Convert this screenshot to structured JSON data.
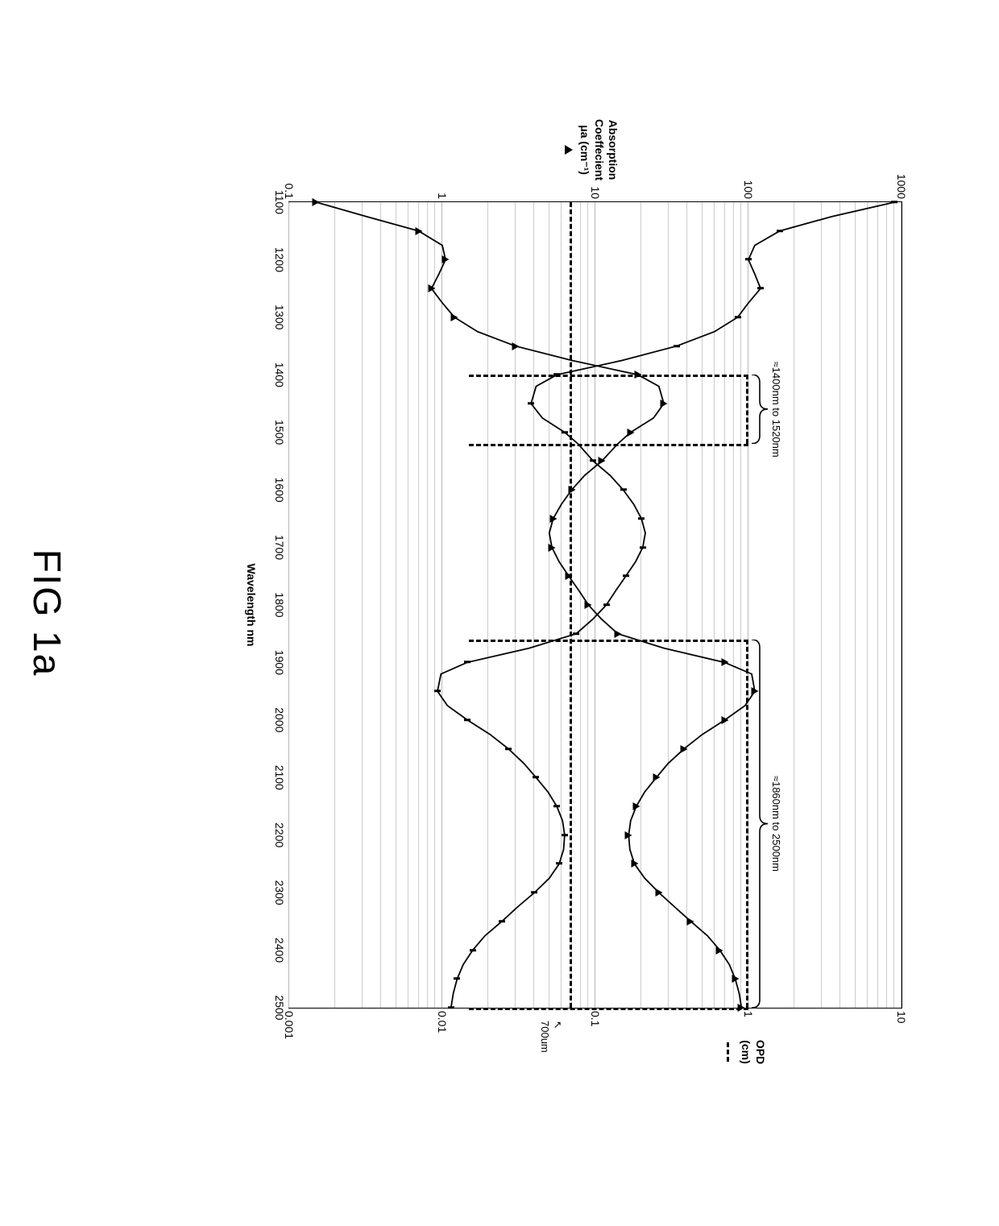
{
  "figure": {
    "title": "FIG 1a",
    "title_fontsize": 48,
    "x_axis": {
      "label": "Wavelength nm",
      "min": 1100,
      "max": 2500,
      "tick_step": 100,
      "ticks": [
        1100,
        1200,
        1300,
        1400,
        1500,
        1600,
        1700,
        1800,
        1900,
        2000,
        2100,
        2200,
        2300,
        2400,
        2500
      ],
      "fontsize": 14
    },
    "y_left": {
      "label_lines": [
        "Absorption",
        "Coeffecient",
        "μa (cm⁻¹)"
      ],
      "marker": "triangle",
      "log": true,
      "min": 0.1,
      "max": 1000,
      "ticks": [
        0.1,
        1,
        10,
        100,
        1000
      ],
      "color": "#000000",
      "fontsize": 14
    },
    "y_right": {
      "label_lines": [
        "OPD",
        "(cm)"
      ],
      "marker": "dash",
      "log": true,
      "min": 0.001,
      "max": 10,
      "ticks": [
        0.001,
        0.01,
        0.1,
        1,
        10
      ],
      "color": "#000000",
      "fontsize": 14
    },
    "grid_color": "#cccccc",
    "background_color": "#ffffff",
    "series": {
      "absorption": {
        "axis": "left",
        "color": "#000000",
        "line_width": 1.8,
        "marker": "triangle",
        "marker_size": 9,
        "data": [
          [
            1100,
            0.15
          ],
          [
            1125,
            0.32
          ],
          [
            1150,
            0.7
          ],
          [
            1175,
            1.0
          ],
          [
            1200,
            1.05
          ],
          [
            1225,
            0.95
          ],
          [
            1250,
            0.85
          ],
          [
            1275,
            1.0
          ],
          [
            1300,
            1.2
          ],
          [
            1325,
            1.7
          ],
          [
            1350,
            3.0
          ],
          [
            1375,
            7.0
          ],
          [
            1400,
            19
          ],
          [
            1420,
            26
          ],
          [
            1450,
            28
          ],
          [
            1475,
            24
          ],
          [
            1500,
            17
          ],
          [
            1520,
            14
          ],
          [
            1550,
            11
          ],
          [
            1575,
            8.5
          ],
          [
            1600,
            7.0
          ],
          [
            1625,
            6.0
          ],
          [
            1650,
            5.3
          ],
          [
            1675,
            5.0
          ],
          [
            1700,
            5.2
          ],
          [
            1725,
            5.8
          ],
          [
            1750,
            6.7
          ],
          [
            1775,
            7.8
          ],
          [
            1800,
            9.0
          ],
          [
            1825,
            11
          ],
          [
            1850,
            14
          ],
          [
            1875,
            28
          ],
          [
            1900,
            70
          ],
          [
            1920,
            105
          ],
          [
            1950,
            110
          ],
          [
            1975,
            95
          ],
          [
            2000,
            70
          ],
          [
            2025,
            50
          ],
          [
            2050,
            38
          ],
          [
            2075,
            30
          ],
          [
            2100,
            25
          ],
          [
            2125,
            21
          ],
          [
            2150,
            18.5
          ],
          [
            2175,
            17
          ],
          [
            2200,
            16.5
          ],
          [
            2225,
            16.8
          ],
          [
            2250,
            18
          ],
          [
            2275,
            21
          ],
          [
            2300,
            26
          ],
          [
            2325,
            33
          ],
          [
            2350,
            42
          ],
          [
            2375,
            54
          ],
          [
            2400,
            65
          ],
          [
            2425,
            75
          ],
          [
            2450,
            82
          ],
          [
            2475,
            87
          ],
          [
            2500,
            90
          ]
        ]
      },
      "opd": {
        "axis": "right",
        "color": "#000000",
        "line_width": 1.8,
        "marker": "tick",
        "marker_size": 8,
        "data": [
          [
            1100,
            9.0
          ],
          [
            1125,
            3.5
          ],
          [
            1150,
            1.6
          ],
          [
            1175,
            1.1
          ],
          [
            1200,
            1.0
          ],
          [
            1225,
            1.1
          ],
          [
            1250,
            1.2
          ],
          [
            1275,
            1.0
          ],
          [
            1300,
            0.85
          ],
          [
            1325,
            0.6
          ],
          [
            1350,
            0.34
          ],
          [
            1375,
            0.15
          ],
          [
            1400,
            0.056
          ],
          [
            1420,
            0.041
          ],
          [
            1450,
            0.038
          ],
          [
            1475,
            0.045
          ],
          [
            1500,
            0.063
          ],
          [
            1520,
            0.077
          ],
          [
            1550,
            0.097
          ],
          [
            1575,
            0.125
          ],
          [
            1600,
            0.152
          ],
          [
            1625,
            0.178
          ],
          [
            1650,
            0.2
          ],
          [
            1675,
            0.212
          ],
          [
            1700,
            0.204
          ],
          [
            1725,
            0.183
          ],
          [
            1750,
            0.158
          ],
          [
            1775,
            0.136
          ],
          [
            1800,
            0.118
          ],
          [
            1825,
            0.096
          ],
          [
            1850,
            0.075
          ],
          [
            1875,
            0.037
          ],
          [
            1900,
            0.0145
          ],
          [
            1920,
            0.0098
          ],
          [
            1950,
            0.0093
          ],
          [
            1975,
            0.0108
          ],
          [
            2000,
            0.0146
          ],
          [
            2025,
            0.0205
          ],
          [
            2050,
            0.027
          ],
          [
            2075,
            0.034
          ],
          [
            2100,
            0.041
          ],
          [
            2125,
            0.049
          ],
          [
            2150,
            0.056
          ],
          [
            2175,
            0.061
          ],
          [
            2200,
            0.063
          ],
          [
            2225,
            0.062
          ],
          [
            2250,
            0.058
          ],
          [
            2275,
            0.05
          ],
          [
            2300,
            0.04
          ],
          [
            2325,
            0.031
          ],
          [
            2350,
            0.0245
          ],
          [
            2375,
            0.019
          ],
          [
            2400,
            0.0158
          ],
          [
            2425,
            0.0137
          ],
          [
            2450,
            0.0125
          ],
          [
            2475,
            0.0118
          ],
          [
            2500,
            0.0114
          ]
        ]
      }
    },
    "ref_line": {
      "value": 0.07,
      "label": "700um",
      "axis": "right",
      "style": "dashed",
      "color": "#000000",
      "width": 3
    },
    "highlight_ranges": [
      {
        "label": "≈1400nm to 1520nm",
        "x0": 1400,
        "x1": 1520
      },
      {
        "label": "≈1860nm to 2500nm",
        "x0": 1860,
        "x1": 2500
      }
    ]
  }
}
